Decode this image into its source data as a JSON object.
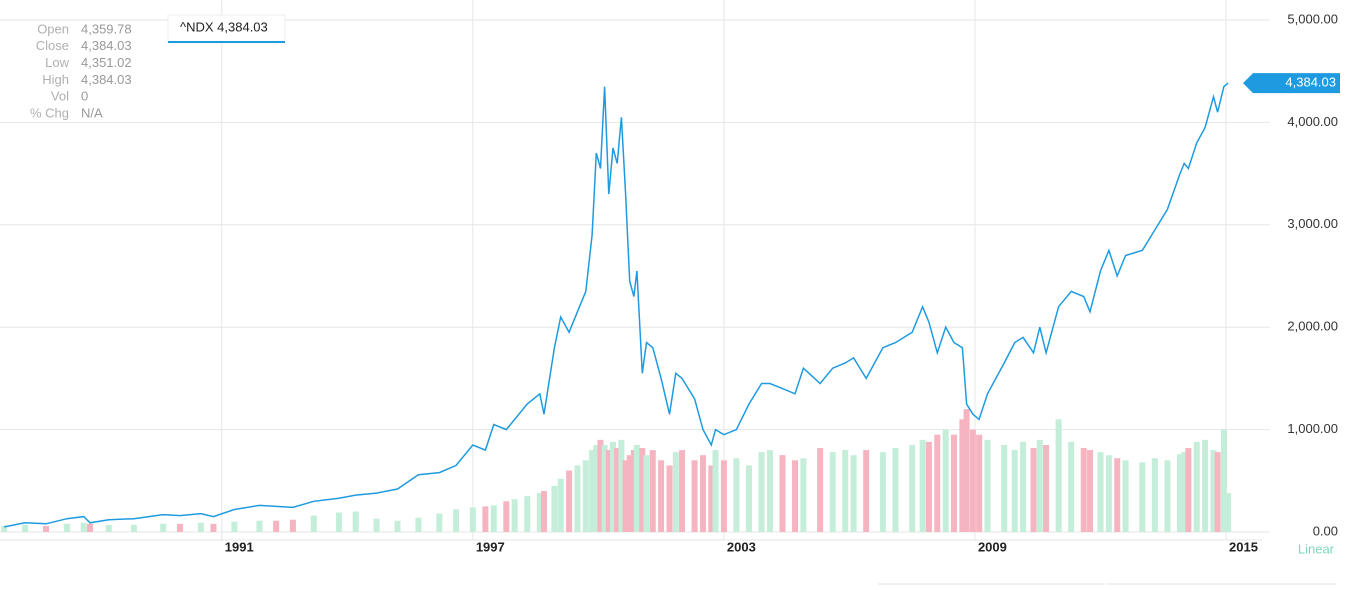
{
  "chart_data": {
    "type": "line",
    "x": [
      1985.8,
      1986.3,
      1986.8,
      1987.3,
      1987.7,
      1987.85,
      1988.3,
      1988.9,
      1989.6,
      1990.0,
      1990.5,
      1990.8,
      1991.3,
      1991.9,
      1992.3,
      1992.7,
      1993.2,
      1993.8,
      1994.2,
      1994.7,
      1995.2,
      1995.7,
      1996.2,
      1996.6,
      1997.0,
      1997.3,
      1997.5,
      1997.8,
      1998.0,
      1998.3,
      1998.6,
      1998.7,
      1998.95,
      1999.1,
      1999.3,
      1999.5,
      1999.7,
      1999.85,
      1999.95,
      2000.05,
      2000.15,
      2000.25,
      2000.35,
      2000.45,
      2000.55,
      2000.65,
      2000.75,
      2000.85,
      2000.92,
      2001.05,
      2001.15,
      2001.3,
      2001.5,
      2001.7,
      2001.85,
      2002.0,
      2002.3,
      2002.5,
      2002.7,
      2002.8,
      2003.0,
      2003.3,
      2003.6,
      2003.9,
      2004.1,
      2004.4,
      2004.7,
      2004.9,
      2005.3,
      2005.6,
      2005.9,
      2006.1,
      2006.4,
      2006.8,
      2007.1,
      2007.5,
      2007.75,
      2007.9,
      2008.1,
      2008.3,
      2008.5,
      2008.7,
      2008.8,
      2008.95,
      2009.1,
      2009.3,
      2009.7,
      2009.95,
      2010.15,
      2010.4,
      2010.55,
      2010.7,
      2011.0,
      2011.3,
      2011.6,
      2011.75,
      2012.0,
      2012.2,
      2012.4,
      2012.6,
      2013.0,
      2013.3,
      2013.6,
      2013.9,
      2014.0,
      2014.1,
      2014.3,
      2014.5,
      2014.7,
      2014.8,
      2014.95,
      2015.05
    ],
    "series": [
      {
        "name": "^NDX",
        "color": "#1e9be0",
        "values": [
          50,
          90,
          80,
          130,
          150,
          90,
          120,
          130,
          170,
          160,
          180,
          150,
          220,
          260,
          250,
          240,
          300,
          330,
          360,
          380,
          420,
          560,
          580,
          650,
          850,
          800,
          1050,
          1000,
          1100,
          1250,
          1350,
          1150,
          1800,
          2100,
          1950,
          2150,
          2350,
          2900,
          3700,
          3550,
          4350,
          3300,
          3750,
          3600,
          4050,
          3300,
          2450,
          2300,
          2550,
          1550,
          1850,
          1800,
          1500,
          1150,
          1550,
          1500,
          1300,
          1000,
          850,
          1000,
          950,
          1000,
          1250,
          1450,
          1450,
          1400,
          1350,
          1600,
          1450,
          1600,
          1650,
          1700,
          1500,
          1800,
          1850,
          1950,
          2200,
          2050,
          1750,
          2000,
          1850,
          1800,
          1250,
          1150,
          1100,
          1350,
          1650,
          1850,
          1900,
          1750,
          2000,
          1750,
          2200,
          2350,
          2300,
          2150,
          2550,
          2750,
          2500,
          2700,
          2750,
          2950,
          3150,
          3500,
          3600,
          3550,
          3800,
          3950,
          4250,
          4100,
          4350,
          4384.03
        ]
      }
    ],
    "volume": [
      60,
      70,
      60,
      80,
      90,
      80,
      70,
      70,
      80,
      80,
      90,
      80,
      100,
      110,
      110,
      120,
      160,
      190,
      200,
      130,
      110,
      140,
      180,
      220,
      240,
      250,
      260,
      300,
      320,
      350,
      380,
      400,
      450,
      520,
      600,
      650,
      700,
      800,
      850,
      900,
      850,
      800,
      880,
      820,
      900,
      700,
      750,
      800,
      850,
      820,
      750,
      800,
      700,
      650,
      780,
      800,
      700,
      750,
      650,
      800,
      700,
      720,
      650,
      780,
      800,
      750,
      700,
      720,
      820,
      780,
      800,
      750,
      800,
      780,
      820,
      850,
      900,
      880,
      950,
      1000,
      950,
      1100,
      1200,
      1000,
      950,
      900,
      850,
      800,
      880,
      820,
      900,
      850,
      1100,
      880,
      820,
      800,
      780,
      750,
      720,
      700,
      680,
      720,
      700,
      760,
      780,
      820,
      880,
      900,
      800,
      780,
      1000,
      380
    ],
    "up_color": "#c4eed9",
    "down_color": "#f6b4c1",
    "xlim": [
      1985.7,
      2015.86
    ],
    "xticks": [
      1991,
      1997,
      2003,
      2009,
      2015
    ],
    "ylim": [
      0,
      5000
    ],
    "yticks": [
      {
        "value": 0,
        "label": "0.00"
      },
      {
        "value": 1000,
        "label": "1,000.00"
      },
      {
        "value": 2000,
        "label": "2,000.00"
      },
      {
        "value": 3000,
        "label": "3,000.00"
      },
      {
        "value": 4000,
        "label": "4,000.00"
      },
      {
        "value": 5000,
        "label": "5,000.00"
      }
    ],
    "grid": true,
    "scale_label": "Linear",
    "last_label": "4,384.03",
    "tooltip": "^NDX 4,384.03",
    "info": [
      {
        "label": "Open",
        "value": "4,359.78"
      },
      {
        "label": "Close",
        "value": "4,384.03"
      },
      {
        "label": "Low",
        "value": "4,351.02"
      },
      {
        "label": "High",
        "value": "4,384.03"
      },
      {
        "label": "Vol",
        "value": "0"
      },
      {
        "label": "% Chg",
        "value": "N/A"
      }
    ]
  }
}
